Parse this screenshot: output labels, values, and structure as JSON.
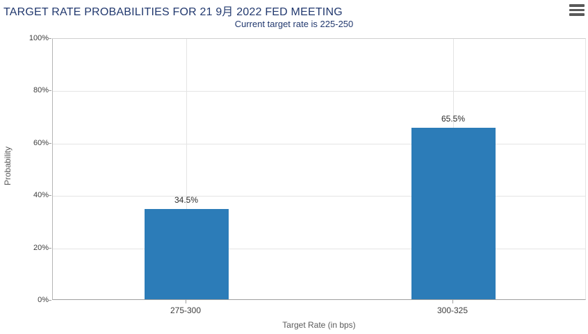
{
  "header": {
    "title": "TARGET RATE PROBABILITIES FOR 21 9月 2022 FED MEETING",
    "menu_icon": "hamburger-icon"
  },
  "watermark_letter": "Q",
  "colors": {
    "bar": "#2c7cb8",
    "title_text": "#21386e",
    "gridline": "#e4e4e4",
    "axis_line": "#9e9e9e",
    "tick_text": "#3c3c3c",
    "axis_title_text": "#5a5a5a"
  },
  "chart_data": {
    "type": "bar",
    "title": "TARGET RATE PROBABILITIES FOR 21 9月 2022 FED MEETING",
    "subtitle": "Current target rate is 225-250",
    "categories": [
      "275-300",
      "300-325"
    ],
    "values": [
      34.5,
      65.5
    ],
    "value_labels": [
      "34.5%",
      "65.5%"
    ],
    "xlabel": "Target Rate (in bps)",
    "ylabel": "Probability",
    "ylim": [
      0,
      100
    ],
    "yticks": [
      0,
      20,
      40,
      60,
      80,
      100
    ],
    "ytick_labels": [
      "0%",
      "20%",
      "40%",
      "60%",
      "80%",
      "100%"
    ],
    "grid": true,
    "legend_position": "none"
  }
}
